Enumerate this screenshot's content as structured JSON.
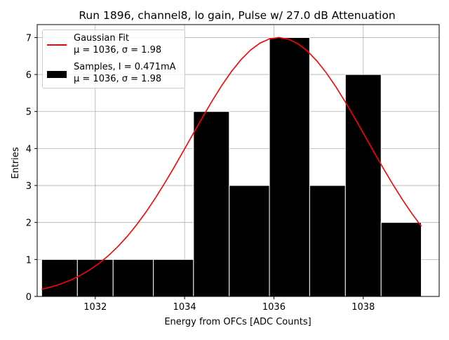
{
  "chart_data": {
    "type": "bar",
    "title": "Run 1896, channel8, lo gain, Pulse w/ 27.0 dB Attenuation",
    "xlabel": "Energy from OFCs [ADC Counts]",
    "ylabel": "Entries",
    "xlim": [
      1030.7,
      1039.7
    ],
    "ylim": [
      0,
      7.35
    ],
    "xticks": [
      1032,
      1034,
      1036,
      1038
    ],
    "yticks": [
      0,
      1,
      2,
      3,
      4,
      5,
      6,
      7
    ],
    "grid": true,
    "legend_position": "top-left",
    "histogram": {
      "name": "Samples, I = 0.471mA",
      "name_line2": "μ = 1036, σ = 1.98",
      "color": "#000000",
      "bin_edges": [
        1030.8,
        1031.6,
        1032.4,
        1033.3,
        1034.2,
        1035.0,
        1035.9,
        1036.8,
        1037.6,
        1038.4,
        1039.3
      ],
      "counts": [
        1,
        1,
        1,
        1,
        5,
        3,
        7,
        3,
        6,
        2
      ]
    },
    "fit": {
      "name": "Gaussian Fit",
      "name_line2": "μ = 1036, σ = 1.98",
      "color": "#ff0000",
      "amplitude": 7.0,
      "mean": 1036.1,
      "sigma": 1.98,
      "x_range": [
        1030.8,
        1039.3
      ]
    }
  }
}
